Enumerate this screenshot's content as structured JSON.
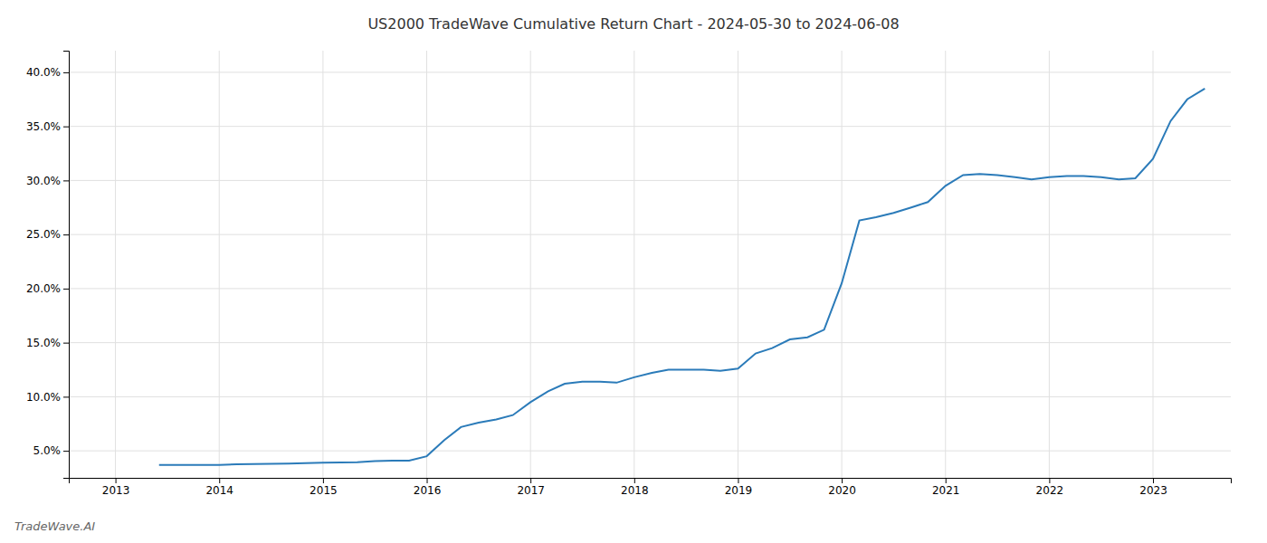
{
  "chart_data": {
    "type": "line",
    "title": "US2000 TradeWave Cumulative Return Chart - 2024-05-30 to 2024-06-08",
    "annotations": [
      "TradeWave.AI"
    ],
    "color": "#2b7bb9",
    "grid": true,
    "x": [
      2013.42,
      2013.5,
      2013.58,
      2013.67,
      2013.75,
      2013.83,
      2013.92,
      2014.0,
      2014.17,
      2014.33,
      2014.5,
      2014.67,
      2014.83,
      2015.0,
      2015.17,
      2015.33,
      2015.5,
      2015.67,
      2015.83,
      2016.0,
      2016.17,
      2016.33,
      2016.5,
      2016.67,
      2016.83,
      2017.0,
      2017.17,
      2017.33,
      2017.5,
      2017.67,
      2017.83,
      2018.0,
      2018.17,
      2018.33,
      2018.5,
      2018.67,
      2018.83,
      2019.0,
      2019.17,
      2019.33,
      2019.5,
      2019.67,
      2019.83,
      2020.0,
      2020.17,
      2020.33,
      2020.5,
      2020.67,
      2020.83,
      2021.0,
      2021.17,
      2021.33,
      2021.5,
      2021.67,
      2021.83,
      2022.0,
      2022.17,
      2022.33,
      2022.5,
      2022.67,
      2022.83,
      2023.0,
      2023.17,
      2023.33,
      2023.5
    ],
    "values": [
      3.7,
      3.7,
      3.7,
      3.7,
      3.7,
      3.7,
      3.7,
      3.7,
      3.75,
      3.78,
      3.8,
      3.82,
      3.85,
      3.9,
      3.92,
      3.95,
      4.05,
      4.1,
      4.1,
      4.5,
      6.0,
      7.2,
      7.6,
      7.9,
      8.3,
      9.5,
      10.5,
      11.2,
      11.4,
      11.4,
      11.3,
      11.8,
      12.2,
      12.5,
      12.5,
      12.5,
      12.4,
      12.6,
      14.0,
      14.5,
      15.3,
      15.5,
      16.2,
      20.5,
      26.3,
      26.6,
      27.0,
      27.5,
      28.0,
      29.5,
      30.5,
      30.6,
      30.5,
      30.3,
      30.1,
      30.3,
      30.4,
      30.4,
      30.3,
      30.1,
      30.2,
      32.0,
      35.5,
      37.5,
      38.5
    ],
    "xlim": [
      2012.55,
      2023.75
    ],
    "xticks": [
      2013,
      2014,
      2015,
      2016,
      2017,
      2018,
      2019,
      2020,
      2021,
      2022,
      2023
    ],
    "ylim": [
      2.5,
      42
    ],
    "yticks": [
      {
        "value": 5.0,
        "label": "5.0%"
      },
      {
        "value": 10.0,
        "label": "10.0%"
      },
      {
        "value": 15.0,
        "label": "15.0%"
      },
      {
        "value": 20.0,
        "label": "20.0%"
      },
      {
        "value": 25.0,
        "label": "25.0%"
      },
      {
        "value": 30.0,
        "label": "30.0%"
      },
      {
        "value": 35.0,
        "label": "35.0%"
      },
      {
        "value": 40.0,
        "label": "40.0%"
      }
    ]
  }
}
